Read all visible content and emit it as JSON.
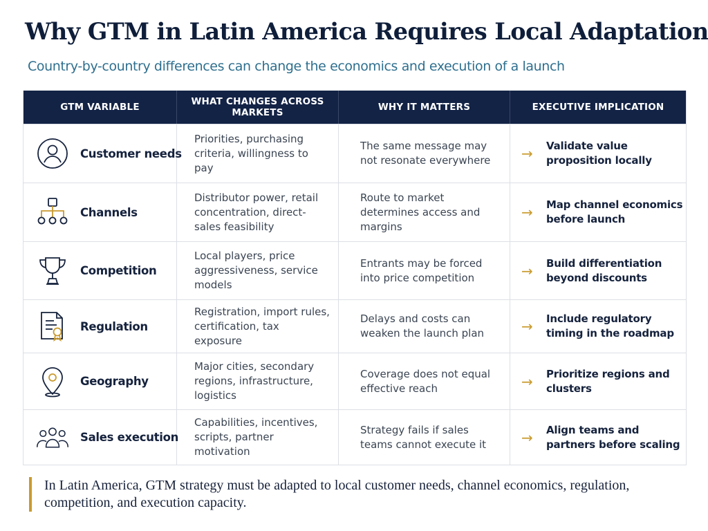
{
  "title": "Why GTM in Latin America Requires Local Adaptation",
  "title_dot": ".",
  "subtitle": "Country-by-country differences can change the economics and execution of a launch",
  "table": {
    "headers": [
      "GTM VARIABLE",
      "WHAT CHANGES ACROSS MARKETS",
      "WHY IT MATTERS",
      "EXECUTIVE IMPLICATION"
    ],
    "rows": [
      {
        "icon": "user-circle-icon",
        "variable": "Customer needs",
        "changes": "Priorities, purchasing criteria, willingness to pay",
        "matters": "The same message may not resonate everywhere",
        "implication": "Validate value proposition locally"
      },
      {
        "icon": "network-hierarchy-icon",
        "variable": "Channels",
        "changes": "Distributor power, retail concentration, direct-sales feasibility",
        "matters": "Route to market determines access and margins",
        "implication": "Map channel economics before launch"
      },
      {
        "icon": "trophy-icon",
        "variable": "Competition",
        "changes": "Local players, price aggressiveness, service models",
        "matters": "Entrants may be forced into price competition",
        "implication": "Build differentiation beyond discounts"
      },
      {
        "icon": "certificate-document-icon",
        "variable": "Regulation",
        "changes": "Registration, import rules, certification, tax exposure",
        "matters": "Delays and costs can weaken the launch plan",
        "implication": "Include regulatory timing in the roadmap"
      },
      {
        "icon": "location-pin-icon",
        "variable": "Geography",
        "changes": "Major cities, secondary regions, infrastructure, logistics",
        "matters": "Coverage does not equal effective reach",
        "implication": "Prioritize regions and clusters"
      },
      {
        "icon": "team-people-icon",
        "variable": "Sales execution",
        "changes": "Capabilities, incentives, scripts, partner motivation",
        "matters": "Strategy fails if sales teams cannot execute it",
        "implication": "Align teams and partners before scaling"
      }
    ]
  },
  "arrow_glyph": "→",
  "footer": "In Latin America, GTM strategy must be adapted to local customer needs, channel economics, regulation, competition, and execution capacity.",
  "colors": {
    "navy": "#132346",
    "gold": "#c99a2e",
    "teal": "#2e6f8e"
  }
}
